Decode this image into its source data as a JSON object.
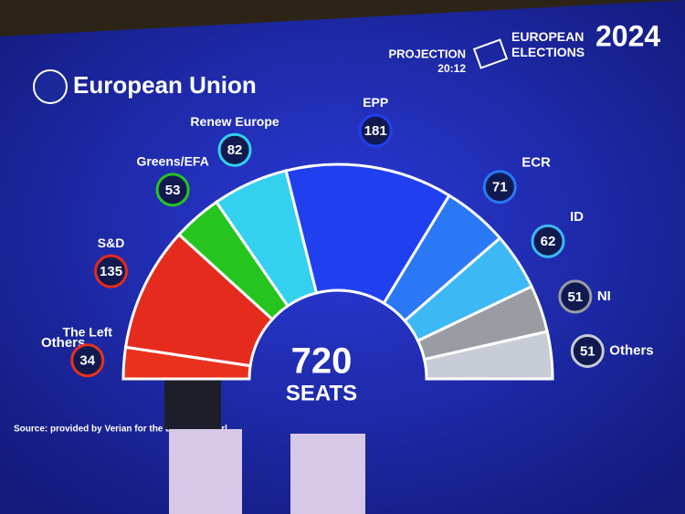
{
  "chart_data": {
    "type": "hemicycle",
    "title": "European Union",
    "header_label": "PROJECTION",
    "header_time": "20:12",
    "header_title": "EUROPEAN ELECTIONS",
    "header_year": "2024",
    "categories": [
      "The Left",
      "S&D",
      "Greens/EFA",
      "Renew Europe",
      "EPP",
      "ECR",
      "ID",
      "NI",
      "Others"
    ],
    "values": [
      34,
      135,
      53,
      82,
      181,
      71,
      62,
      51,
      51
    ],
    "colors": [
      "#e8321e",
      "#e52b1e",
      "#26c41f",
      "#33d0f0",
      "#2040f0",
      "#2a78f5",
      "#3cb8f5",
      "#9a9ca3",
      "#c8ccd6"
    ],
    "annotation": "Others",
    "total": 720,
    "total_label": "SEATS",
    "source": "Source: provided by Verian for the European Parl"
  }
}
